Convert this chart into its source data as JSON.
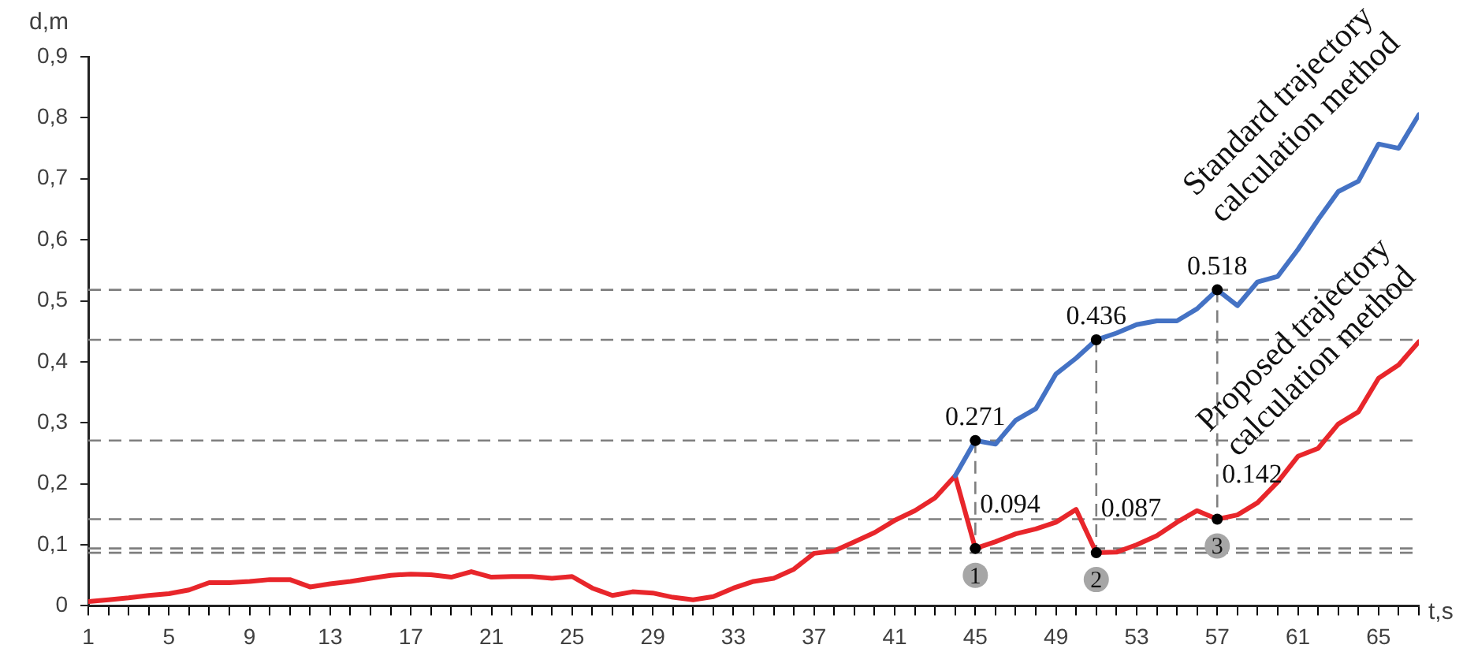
{
  "chart_data": {
    "type": "line",
    "xlabel": "t,s",
    "ylabel": "d,m",
    "x": [
      1,
      2,
      3,
      4,
      5,
      6,
      7,
      8,
      9,
      10,
      11,
      12,
      13,
      14,
      15,
      16,
      17,
      18,
      19,
      20,
      21,
      22,
      23,
      24,
      25,
      26,
      27,
      28,
      29,
      30,
      31,
      32,
      33,
      34,
      35,
      36,
      37,
      38,
      39,
      40,
      41,
      42,
      43,
      44,
      45,
      46,
      47,
      48,
      49,
      50,
      51,
      52,
      53,
      54,
      55,
      56,
      57,
      58,
      59,
      60,
      61,
      62,
      63,
      64,
      65,
      66,
      67
    ],
    "xlim": [
      1,
      67
    ],
    "xticks": [
      1,
      {
        "value": 2,
        "label": null
      },
      {
        "value": 3,
        "label": null
      },
      {
        "value": 4,
        "label": null
      },
      5,
      {
        "value": 6,
        "label": null
      },
      {
        "value": 7,
        "label": null
      },
      {
        "value": 8,
        "label": null
      },
      9,
      {
        "value": 10,
        "label": null
      },
      {
        "value": 11,
        "label": null
      },
      {
        "value": 12,
        "label": null
      },
      13,
      {
        "value": 14,
        "label": null
      },
      {
        "value": 15,
        "label": null
      },
      {
        "value": 16,
        "label": null
      },
      17,
      {
        "value": 18,
        "label": null
      },
      {
        "value": 19,
        "label": null
      },
      {
        "value": 20,
        "label": null
      },
      21,
      {
        "value": 22,
        "label": null
      },
      {
        "value": 23,
        "label": null
      },
      {
        "value": 24,
        "label": null
      },
      25,
      {
        "value": 26,
        "label": null
      },
      {
        "value": 27,
        "label": null
      },
      {
        "value": 28,
        "label": null
      },
      29,
      {
        "value": 30,
        "label": null
      },
      {
        "value": 31,
        "label": null
      },
      {
        "value": 32,
        "label": null
      },
      33,
      {
        "value": 34,
        "label": null
      },
      {
        "value": 35,
        "label": null
      },
      {
        "value": 36,
        "label": null
      },
      37,
      {
        "value": 38,
        "label": null
      },
      {
        "value": 39,
        "label": null
      },
      {
        "value": 40,
        "label": null
      },
      41,
      {
        "value": 42,
        "label": null
      },
      {
        "value": 43,
        "label": null
      },
      {
        "value": 44,
        "label": null
      },
      45,
      {
        "value": 46,
        "label": null
      },
      {
        "value": 47,
        "label": null
      },
      {
        "value": 48,
        "label": null
      },
      49,
      {
        "value": 50,
        "label": null
      },
      {
        "value": 51,
        "label": null
      },
      {
        "value": 52,
        "label": null
      },
      53,
      {
        "value": 54,
        "label": null
      },
      {
        "value": 55,
        "label": null
      },
      {
        "value": 56,
        "label": null
      },
      57,
      {
        "value": 58,
        "label": null
      },
      {
        "value": 59,
        "label": null
      },
      {
        "value": 60,
        "label": null
      },
      61,
      {
        "value": 62,
        "label": null
      },
      {
        "value": 63,
        "label": null
      },
      {
        "value": 64,
        "label": null
      },
      65,
      {
        "value": 66,
        "label": null
      },
      {
        "value": 67,
        "label": null
      }
    ],
    "series": [
      {
        "name": "Standard trajectory calculation method",
        "color": "#4472c4",
        "values": [
          null,
          null,
          null,
          null,
          null,
          null,
          null,
          null,
          null,
          null,
          null,
          null,
          null,
          null,
          null,
          null,
          null,
          null,
          null,
          null,
          null,
          null,
          null,
          null,
          null,
          null,
          null,
          null,
          null,
          null,
          null,
          null,
          null,
          null,
          null,
          null,
          null,
          null,
          null,
          null,
          null,
          null,
          null,
          0.213,
          0.271,
          0.265,
          0.304,
          0.323,
          0.38,
          0.406,
          0.436,
          0.447,
          0.461,
          0.467,
          0.467,
          0.487,
          0.518,
          0.492,
          0.531,
          0.54,
          0.584,
          0.633,
          0.679,
          0.696,
          0.757,
          0.75,
          0.805
        ],
        "value_labels": [
          null,
          null,
          null,
          null,
          null,
          null,
          null,
          null,
          null,
          null,
          null,
          null,
          null,
          null,
          null,
          null,
          null,
          null,
          null,
          null,
          null,
          null,
          null,
          null,
          null,
          null,
          null,
          null,
          null,
          null,
          null,
          null,
          null,
          null,
          null,
          null,
          null,
          null,
          null,
          null,
          null,
          null,
          null,
          null,
          "0.271",
          null,
          null,
          null,
          null,
          null,
          "0.436",
          null,
          null,
          null,
          null,
          null,
          "0.518",
          null,
          null,
          null,
          null,
          null,
          null,
          null,
          null,
          null,
          null
        ]
      },
      {
        "name": "Proposed trajectory calculation method",
        "color": "#e8262b",
        "values": [
          0.007,
          0.01,
          0.013,
          0.017,
          0.02,
          0.026,
          0.038,
          0.038,
          0.04,
          0.043,
          0.043,
          0.031,
          0.036,
          0.04,
          0.045,
          0.05,
          0.052,
          0.051,
          0.047,
          0.056,
          0.047,
          0.048,
          0.048,
          0.045,
          0.048,
          0.029,
          0.017,
          0.023,
          0.021,
          0.014,
          0.01,
          0.015,
          0.029,
          0.04,
          0.045,
          0.06,
          0.086,
          0.09,
          0.105,
          0.12,
          0.14,
          0.156,
          0.177,
          0.213,
          0.094,
          0.105,
          0.118,
          0.126,
          0.137,
          0.158,
          0.087,
          0.088,
          0.1,
          0.115,
          0.137,
          0.156,
          0.142,
          0.149,
          0.169,
          0.203,
          0.245,
          0.258,
          0.298,
          0.318,
          0.373,
          0.395,
          0.433
        ],
        "value_labels": [
          null,
          null,
          null,
          null,
          null,
          null,
          null,
          null,
          null,
          null,
          null,
          null,
          null,
          null,
          null,
          null,
          null,
          null,
          null,
          null,
          null,
          null,
          null,
          null,
          null,
          null,
          null,
          null,
          null,
          null,
          null,
          null,
          null,
          null,
          null,
          null,
          null,
          null,
          null,
          null,
          null,
          null,
          null,
          null,
          "0.094",
          null,
          null,
          null,
          null,
          null,
          "0.087",
          null,
          null,
          null,
          null,
          null,
          "0.142",
          null,
          null,
          null,
          null,
          null,
          null,
          null,
          null,
          null,
          null
        ]
      }
    ],
    "ylim": [
      0,
      0.9
    ],
    "yticks": [
      0,
      {
        "value": 0.1,
        "label": "0,1"
      },
      {
        "value": 0.2,
        "label": "0,2"
      },
      {
        "value": 0.3,
        "label": "0,3"
      },
      {
        "value": 0.4,
        "label": "0,4"
      },
      {
        "value": 0.5,
        "label": "0,5"
      },
      {
        "value": 0.6,
        "label": "0,6"
      },
      {
        "value": 0.7,
        "label": "0,7"
      },
      {
        "value": 0.8,
        "label": "0,8"
      },
      {
        "value": 0.9,
        "label": "0,9"
      }
    ],
    "grid": false,
    "legend": false,
    "marker": "none",
    "line_style": "solid",
    "ref_lines": [
      {
        "axis": "y",
        "value": 0.518,
        "label": null,
        "color": "#7f7f7f",
        "line_style": "dashed"
      },
      {
        "axis": "y",
        "value": 0.436,
        "label": null,
        "color": "#7f7f7f",
        "line_style": "dashed"
      },
      {
        "axis": "y",
        "value": 0.271,
        "label": null,
        "color": "#7f7f7f",
        "line_style": "dashed"
      },
      {
        "axis": "y",
        "value": 0.094,
        "label": null,
        "color": "#7f7f7f",
        "line_style": "dashed"
      },
      {
        "axis": "y",
        "value": 0.087,
        "label": null,
        "color": "#7f7f7f",
        "line_style": "dashed"
      },
      {
        "axis": "y",
        "value": 0.142,
        "label": null,
        "color": "#7f7f7f",
        "line_style": "dashed"
      },
      {
        "axis": "x",
        "value": 45,
        "label": null,
        "color": "#7f7f7f",
        "line_style": "dashed"
      },
      {
        "axis": "x",
        "value": 51,
        "label": null,
        "color": "#7f7f7f",
        "line_style": "dashed"
      },
      {
        "axis": "x",
        "value": 57,
        "label": null,
        "color": "#7f7f7f",
        "line_style": "dashed"
      }
    ],
    "annotations": [
      {
        "text": "1",
        "x": 45,
        "y": 0.094
      },
      {
        "text": "2",
        "x": 51,
        "y": 0.087
      },
      {
        "text": "3",
        "x": 57,
        "y": 0.142
      }
    ]
  }
}
